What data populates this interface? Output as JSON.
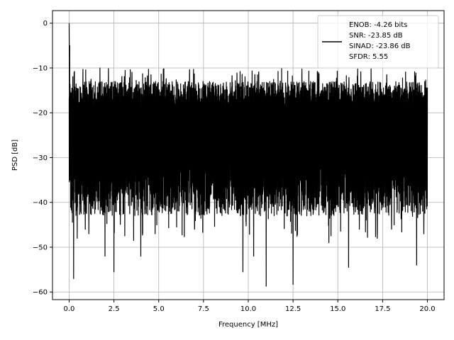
{
  "chart_data": {
    "type": "line",
    "title": "",
    "xlabel": "Frequency [MHz]",
    "ylabel": "PSD [dB]",
    "xlim": [
      -0.93,
      20.93
    ],
    "ylim": [
      -61.7,
      2.8
    ],
    "x_ticks": [
      0.0,
      2.5,
      5.0,
      7.5,
      10.0,
      12.5,
      15.0,
      17.5,
      20.0
    ],
    "x_tick_labels": [
      "0.0",
      "2.5",
      "5.0",
      "7.5",
      "10.0",
      "12.5",
      "15.0",
      "17.5",
      "20.0"
    ],
    "y_ticks": [
      0,
      -10,
      -20,
      -30,
      -40,
      -50,
      -60
    ],
    "y_tick_labels": [
      "0",
      "−10",
      "−20",
      "−30",
      "−40",
      "−50",
      "−60"
    ],
    "grid": true,
    "legend_position": "top-right",
    "legend_lines": [
      "ENOB: -4.26 bits",
      "SNR: -23.85 dB",
      "SINAD: -23.86 dB",
      "SFDR: 5.55"
    ],
    "series_color": "#000000",
    "series": [
      {
        "name": "",
        "x_range": [
          0.0,
          20.0
        ],
        "peak": {
          "x": 0.0,
          "y": 0.0
        },
        "noise_floor_upper": -13,
        "noise_floor_lower": -37,
        "noise_min": -58.7,
        "dips": [
          {
            "x": 0.25,
            "y": -57
          },
          {
            "x": 0.45,
            "y": -48
          },
          {
            "x": 0.9,
            "y": -46
          },
          {
            "x": 1.1,
            "y": -47
          },
          {
            "x": 2.0,
            "y": -52
          },
          {
            "x": 2.5,
            "y": -55.5
          },
          {
            "x": 3.6,
            "y": -48.5
          },
          {
            "x": 4.0,
            "y": -52
          },
          {
            "x": 4.8,
            "y": -47
          },
          {
            "x": 6.0,
            "y": -45.5
          },
          {
            "x": 7.0,
            "y": -46
          },
          {
            "x": 9.7,
            "y": -55.5
          },
          {
            "x": 10.3,
            "y": -52
          },
          {
            "x": 11.0,
            "y": -58.7
          },
          {
            "x": 12.5,
            "y": -58.3
          },
          {
            "x": 14.5,
            "y": -49
          },
          {
            "x": 15.6,
            "y": -54.5
          },
          {
            "x": 16.2,
            "y": -46
          },
          {
            "x": 17.2,
            "y": -48
          },
          {
            "x": 18.0,
            "y": -46
          },
          {
            "x": 19.4,
            "y": -54
          },
          {
            "x": 19.8,
            "y": -47
          }
        ]
      }
    ]
  }
}
